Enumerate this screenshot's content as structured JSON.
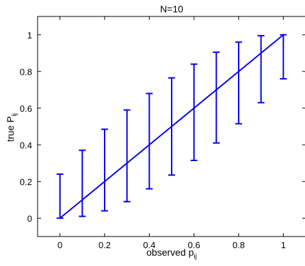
{
  "chart_data": {
    "type": "line",
    "title": "N=10",
    "xlabel": {
      "text": "observed p",
      "subscript": "ij"
    },
    "ylabel": {
      "text": "true P",
      "subscript": "ij"
    },
    "xlim": [
      -0.1,
      1.1
    ],
    "ylim": [
      -0.1,
      1.1
    ],
    "xticks": [
      0,
      0.2,
      0.4,
      0.6,
      0.8,
      1
    ],
    "yticks": [
      0,
      0.2,
      0.4,
      0.6,
      0.8,
      1
    ],
    "xtick_labels": [
      "0",
      "0.2",
      "0.4",
      "0.6",
      "0.8",
      "1"
    ],
    "ytick_labels": [
      "0",
      "0.2",
      "0.4",
      "0.6",
      "0.8",
      "1"
    ],
    "grid": false,
    "series": [
      {
        "color": "#0000ee",
        "x": [
          0,
          0.1,
          0.2,
          0.3,
          0.4,
          0.5,
          0.6,
          0.7,
          0.8,
          0.9,
          1.0
        ],
        "y": [
          0,
          0.1,
          0.2,
          0.3,
          0.4,
          0.5,
          0.6,
          0.7,
          0.8,
          0.9,
          1.0
        ],
        "error_lower": [
          0,
          0.01,
          0.04,
          0.09,
          0.16,
          0.235,
          0.315,
          0.41,
          0.515,
          0.63,
          0.76
        ],
        "error_upper": [
          0.24,
          0.37,
          0.485,
          0.59,
          0.68,
          0.765,
          0.84,
          0.905,
          0.96,
          0.995,
          1.0
        ]
      }
    ]
  }
}
